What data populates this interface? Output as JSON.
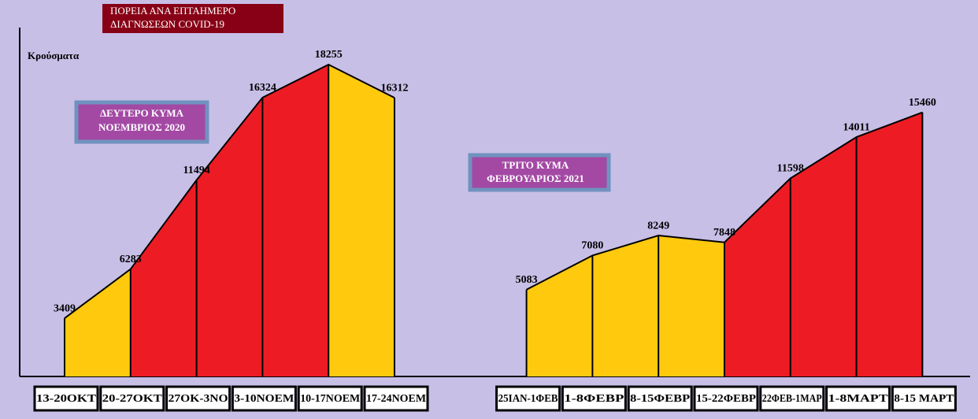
{
  "chart_data": {
    "type": "area",
    "title": [
      "ΠΟΡΕΙΑ  ΑΝΑ ΕΠΤΑΗΜΕΡΟ",
      "ΔΙΑΓΝΩΣΕΩΝ  COVID-19"
    ],
    "ylabel": "Κρούσματα",
    "annotations": [
      [
        "ΔΕΥΤΕΡΟ ΚΥΜΑ",
        "ΝΟΕΜΒΡΙΟΣ 2020"
      ],
      [
        "ΤΡΙΤΟ ΚΥΜΑ",
        "ΦΕΒΡΟΥΑΡΙΟΣ 2021"
      ]
    ],
    "categories": [
      "13-20ΟΚΤ",
      "20-27ΟΚΤ",
      "27ΟΚ-3ΝΟ",
      "3-10ΝΟΕΜ",
      "10-17ΝΟΕΜ",
      "17-24ΝΟΕΜ",
      null,
      "25ΙΑΝ-1ΦΕΒ",
      "1-8ΦΕΒΡ",
      "8-15ΦΕΒΡ",
      "15-22ΦΕΒΡ",
      "22ΦΕΒ-1ΜΑΡ",
      "1-8ΜΑΡΤ",
      "8-15 ΜΑΡΤ"
    ],
    "values": [
      3409,
      6283,
      11494,
      16324,
      18255,
      16312,
      null,
      5083,
      7080,
      8249,
      7848,
      11598,
      14011,
      15460
    ],
    "colors": [
      "#ffc90e",
      "#ed1c24",
      "#ed1c24",
      "#ed1c24",
      "#ffc90e",
      null,
      null,
      "#ffc90e",
      "#ffc90e",
      "#ffc90e",
      "#ed1c24",
      "#ed1c24",
      "#ed1c24",
      null
    ],
    "ylim": [
      0,
      19500
    ]
  }
}
